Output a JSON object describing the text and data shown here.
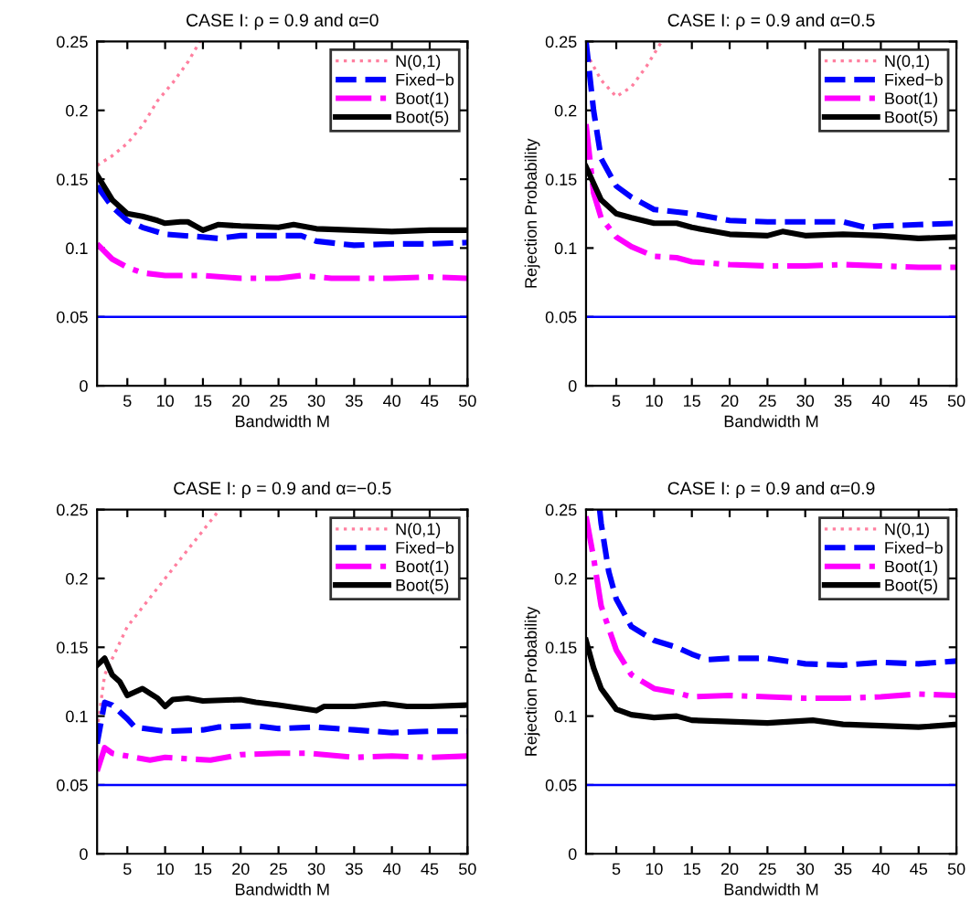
{
  "chart_data": [
    {
      "type": "line",
      "title": "CASE I: ρ = 0.9 and α=0",
      "xlabel": "Bandwidth M",
      "xlim": [
        1,
        50
      ],
      "xticks": [
        5,
        10,
        15,
        20,
        25,
        30,
        35,
        40,
        45,
        50
      ],
      "ylim": [
        0,
        0.25
      ],
      "yticks": [
        0,
        0.05,
        0.1,
        0.15,
        0.2,
        0.25
      ],
      "grid": false,
      "legend": "top right",
      "ref_lines": [
        {
          "axis": "y",
          "value": 0.05,
          "color": "#0000ff",
          "line_style": "solid"
        }
      ],
      "series": [
        {
          "name": "N(0,1)",
          "color": "#ff7f9f",
          "line_style": "dotted",
          "x": [
            1,
            3,
            5,
            7,
            9,
            11,
            13,
            14.6
          ],
          "values": [
            0.16,
            0.167,
            0.176,
            0.189,
            0.207,
            0.22,
            0.235,
            0.25
          ]
        },
        {
          "name": "Fixed−b",
          "color": "#0000ff",
          "line_style": "dashed",
          "x": [
            1,
            3,
            5,
            7,
            10,
            15,
            17,
            20,
            25,
            28,
            30,
            35,
            40,
            45,
            50
          ],
          "values": [
            0.145,
            0.13,
            0.12,
            0.115,
            0.11,
            0.108,
            0.107,
            0.109,
            0.109,
            0.109,
            0.105,
            0.102,
            0.103,
            0.103,
            0.104
          ]
        },
        {
          "name": "Boot(1)",
          "color": "#ff00ff",
          "line_style": "dashdot",
          "x": [
            1,
            3,
            5,
            7,
            10,
            15,
            20,
            25,
            28,
            32,
            35,
            40,
            45,
            50
          ],
          "values": [
            0.103,
            0.092,
            0.086,
            0.082,
            0.08,
            0.08,
            0.078,
            0.078,
            0.08,
            0.078,
            0.078,
            0.078,
            0.079,
            0.078
          ]
        },
        {
          "name": "Boot(5)",
          "color": "#000000",
          "line_style": "solid",
          "x": [
            1,
            3,
            5,
            7,
            9,
            10,
            12,
            13,
            15,
            17,
            20,
            25,
            27,
            30,
            35,
            40,
            45,
            50
          ],
          "values": [
            0.153,
            0.135,
            0.125,
            0.123,
            0.12,
            0.118,
            0.119,
            0.119,
            0.113,
            0.117,
            0.116,
            0.115,
            0.117,
            0.114,
            0.113,
            0.112,
            0.113,
            0.113
          ]
        }
      ]
    },
    {
      "type": "line",
      "title": "CASE I: ρ = 0.9 and α=0.5",
      "xlabel": "Bandwidth M",
      "ylabel": "Rejection Probability",
      "xlim": [
        1,
        50
      ],
      "xticks": [
        5,
        10,
        15,
        20,
        25,
        30,
        35,
        40,
        45,
        50
      ],
      "ylim": [
        0,
        0.25
      ],
      "yticks": [
        0,
        0.05,
        0.1,
        0.15,
        0.2,
        0.25
      ],
      "grid": false,
      "legend": "top right",
      "ref_lines": [
        {
          "axis": "y",
          "value": 0.05,
          "color": "#0000ff",
          "line_style": "solid"
        }
      ],
      "series": [
        {
          "name": "N(0,1)",
          "color": "#ff7f9f",
          "line_style": "dotted",
          "x": [
            1,
            3,
            5,
            7,
            9,
            11
          ],
          "values": [
            0.242,
            0.222,
            0.21,
            0.217,
            0.232,
            0.25
          ]
        },
        {
          "name": "Fixed−b",
          "color": "#0000ff",
          "line_style": "dashed",
          "x": [
            1,
            2,
            3,
            5,
            7,
            10,
            15,
            20,
            25,
            30,
            35,
            38,
            40,
            45,
            50
          ],
          "values": [
            0.25,
            0.2,
            0.165,
            0.145,
            0.137,
            0.128,
            0.125,
            0.12,
            0.119,
            0.119,
            0.119,
            0.115,
            0.116,
            0.117,
            0.118
          ]
        },
        {
          "name": "Boot(1)",
          "color": "#ff00ff",
          "line_style": "dashdot",
          "x": [
            1,
            2,
            3,
            5,
            7,
            10,
            13,
            15,
            20,
            25,
            30,
            35,
            40,
            45,
            50
          ],
          "values": [
            0.19,
            0.14,
            0.122,
            0.108,
            0.101,
            0.094,
            0.093,
            0.09,
            0.088,
            0.087,
            0.087,
            0.088,
            0.087,
            0.086,
            0.086
          ]
        },
        {
          "name": "Boot(5)",
          "color": "#000000",
          "line_style": "solid",
          "x": [
            1,
            3,
            5,
            7,
            10,
            13,
            15,
            20,
            25,
            27,
            30,
            35,
            40,
            45,
            50
          ],
          "values": [
            0.159,
            0.135,
            0.125,
            0.122,
            0.118,
            0.118,
            0.115,
            0.11,
            0.109,
            0.112,
            0.109,
            0.11,
            0.109,
            0.107,
            0.108
          ]
        }
      ]
    },
    {
      "type": "line",
      "title": "CASE I: ρ = 0.9 and α=−0.5",
      "xlabel": "Bandwidth M",
      "xlim": [
        1,
        50
      ],
      "xticks": [
        5,
        10,
        15,
        20,
        25,
        30,
        35,
        40,
        45,
        50
      ],
      "ylim": [
        0,
        0.25
      ],
      "yticks": [
        0,
        0.05,
        0.1,
        0.15,
        0.2,
        0.25
      ],
      "grid": false,
      "legend": "top right",
      "ref_lines": [
        {
          "axis": "y",
          "value": 0.05,
          "color": "#0000ff",
          "line_style": "solid"
        }
      ],
      "series": [
        {
          "name": "N(0,1)",
          "color": "#ff7f9f",
          "line_style": "dotted",
          "x": [
            1,
            2,
            5,
            10,
            17.2
          ],
          "values": [
            0.09,
            0.13,
            0.165,
            0.2,
            0.25
          ]
        },
        {
          "name": "Fixed−b",
          "color": "#0000ff",
          "line_style": "dashed",
          "x": [
            1,
            2,
            3,
            5,
            6,
            10,
            15,
            17,
            22,
            25,
            30,
            35,
            40,
            45,
            50
          ],
          "values": [
            0.08,
            0.11,
            0.108,
            0.098,
            0.092,
            0.089,
            0.09,
            0.092,
            0.093,
            0.091,
            0.092,
            0.09,
            0.088,
            0.089,
            0.089
          ]
        },
        {
          "name": "Boot(1)",
          "color": "#ff00ff",
          "line_style": "dashdot",
          "x": [
            1,
            2,
            3,
            5,
            8,
            10,
            13,
            16,
            20,
            25,
            29,
            35,
            40,
            45,
            50
          ],
          "values": [
            0.06,
            0.077,
            0.073,
            0.071,
            0.068,
            0.07,
            0.069,
            0.068,
            0.072,
            0.073,
            0.073,
            0.07,
            0.071,
            0.07,
            0.071
          ]
        },
        {
          "name": "Boot(5)",
          "color": "#000000",
          "line_style": "solid",
          "x": [
            1,
            2,
            3,
            4,
            5,
            7,
            9,
            10,
            11,
            13,
            15,
            20,
            22,
            25,
            30,
            31,
            35,
            39,
            42,
            45,
            50
          ],
          "values": [
            0.137,
            0.142,
            0.13,
            0.125,
            0.115,
            0.12,
            0.113,
            0.107,
            0.112,
            0.113,
            0.111,
            0.112,
            0.11,
            0.108,
            0.104,
            0.107,
            0.107,
            0.109,
            0.107,
            0.107,
            0.108
          ]
        }
      ]
    },
    {
      "type": "line",
      "title": "CASE I: ρ = 0.9 and α=0.9",
      "xlabel": "Bandwidth M",
      "ylabel": "Rejection Probability",
      "xlim": [
        1,
        50
      ],
      "xticks": [
        5,
        10,
        15,
        20,
        25,
        30,
        35,
        40,
        45,
        50
      ],
      "ylim": [
        0,
        0.25
      ],
      "yticks": [
        0,
        0.05,
        0.1,
        0.15,
        0.2,
        0.25
      ],
      "grid": false,
      "legend": "top right",
      "ref_lines": [
        {
          "axis": "y",
          "value": 0.05,
          "color": "#0000ff",
          "line_style": "solid"
        }
      ],
      "series": [
        {
          "name": "N(0,1)",
          "color": "#ff7f9f",
          "line_style": "dotted"
        },
        {
          "name": "Fixed−b",
          "color": "#0000ff",
          "line_style": "dashed",
          "x": [
            2.8,
            3,
            4,
            5,
            7,
            10,
            13,
            15,
            17,
            20,
            25,
            30,
            35,
            40,
            45,
            50
          ],
          "values": [
            0.25,
            0.24,
            0.205,
            0.185,
            0.165,
            0.155,
            0.15,
            0.145,
            0.141,
            0.142,
            0.142,
            0.138,
            0.137,
            0.139,
            0.138,
            0.14
          ]
        },
        {
          "name": "Boot(1)",
          "color": "#ff00ff",
          "line_style": "dashdot",
          "x": [
            1,
            2,
            3,
            5,
            7,
            10,
            13,
            15,
            20,
            25,
            30,
            35,
            40,
            45,
            50
          ],
          "values": [
            0.245,
            0.215,
            0.18,
            0.148,
            0.13,
            0.12,
            0.117,
            0.114,
            0.115,
            0.114,
            0.113,
            0.113,
            0.114,
            0.116,
            0.115
          ]
        },
        {
          "name": "Boot(5)",
          "color": "#000000",
          "line_style": "solid",
          "x": [
            1,
            2,
            3,
            5,
            7,
            10,
            13,
            15,
            20,
            25,
            31,
            35,
            40,
            45,
            50
          ],
          "values": [
            0.155,
            0.135,
            0.12,
            0.105,
            0.101,
            0.099,
            0.1,
            0.097,
            0.096,
            0.095,
            0.097,
            0.094,
            0.093,
            0.092,
            0.094
          ]
        }
      ]
    }
  ]
}
